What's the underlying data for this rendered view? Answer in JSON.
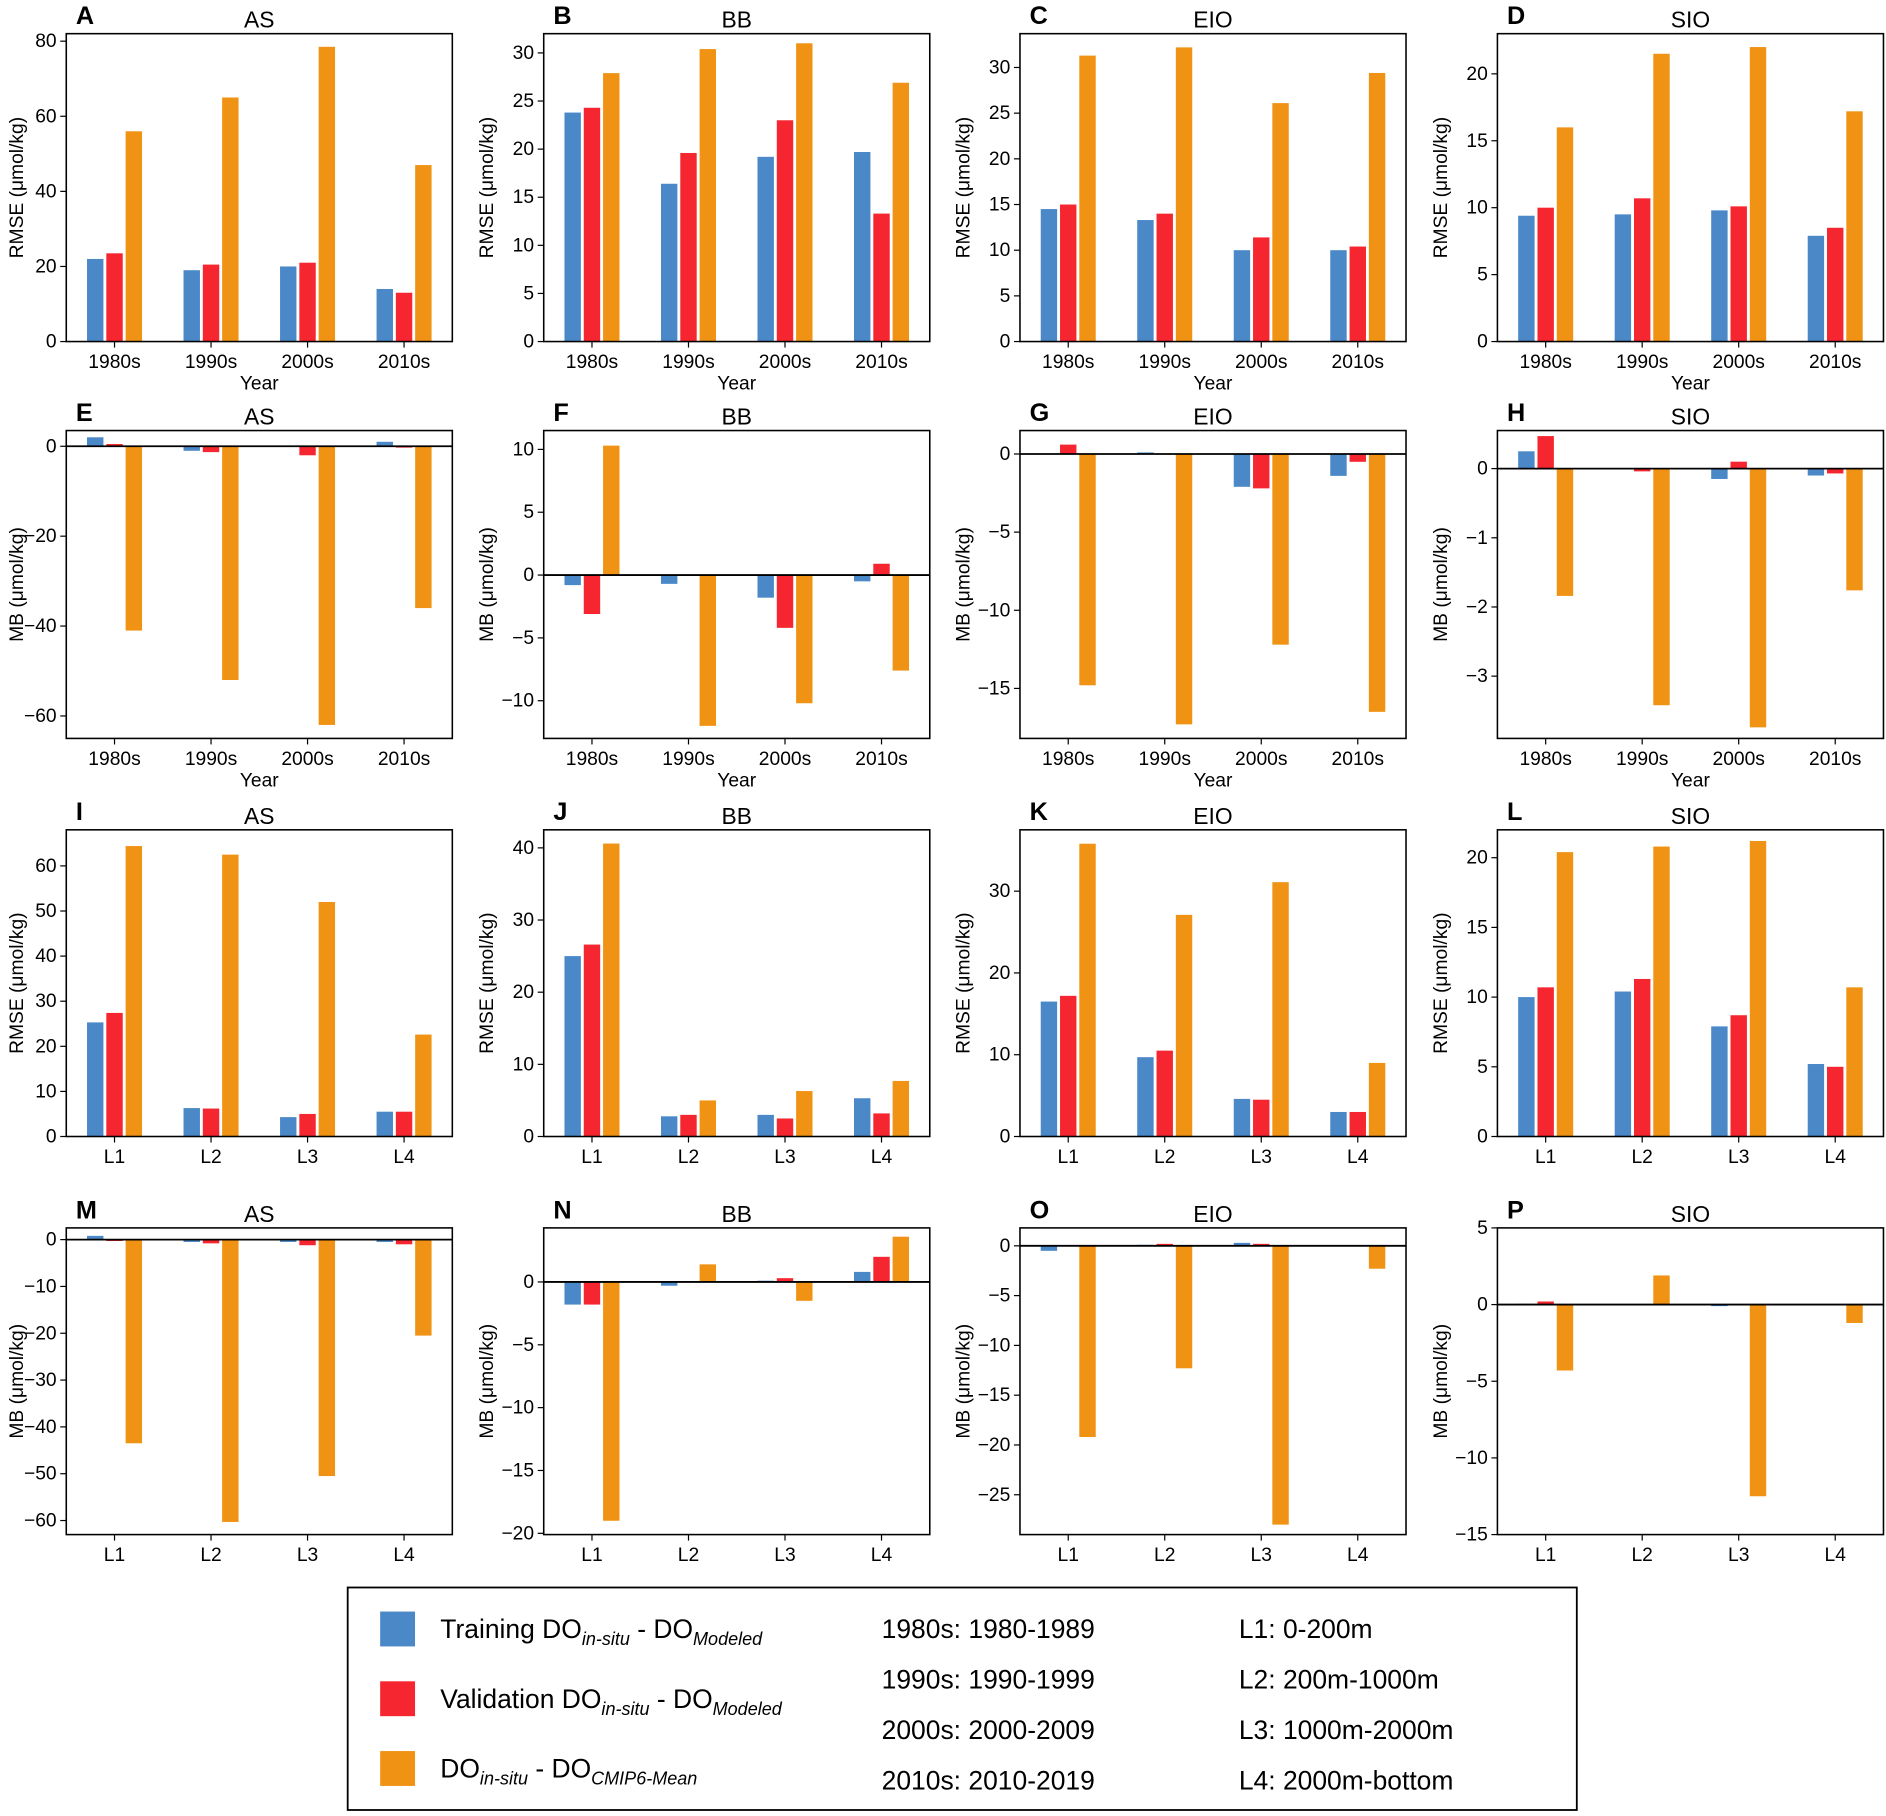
{
  "colors": {
    "training": "#4a88c8",
    "validation": "#f5262f",
    "cmip6": "#f09213"
  },
  "legend": {
    "items": [
      {
        "parts": [
          "Training DO",
          "in-situ",
          " - DO",
          "Modeled"
        ],
        "color_key": "training"
      },
      {
        "parts": [
          "Validation DO",
          "in-situ",
          " - DO",
          "Modeled"
        ],
        "color_key": "validation"
      },
      {
        "parts": [
          "DO",
          "in-situ",
          " - DO",
          "CMIP6-Mean"
        ],
        "color_key": "cmip6"
      }
    ],
    "periods": [
      "1980s: 1980-1989",
      "1990s: 1990-1999",
      "2000s: 2000-2009",
      "2010s: 2010-2019"
    ],
    "layers": [
      "L1: 0-200m",
      "L2: 200m-1000m",
      "L3: 1000m-2000m",
      "L4: 2000m-bottom"
    ]
  },
  "chart_data": [
    {
      "panel": "A",
      "title": "AS",
      "type": "bar",
      "categories": [
        "1980s",
        "1990s",
        "2000s",
        "2010s"
      ],
      "xlabel": "Year",
      "ylabel": "RMSE (μmol/kg)",
      "ylim": [
        0,
        82
      ],
      "yticks": [
        0,
        20,
        40,
        60,
        80
      ],
      "series": [
        [
          22,
          19,
          20,
          14
        ],
        [
          23.5,
          20.5,
          21,
          13
        ],
        [
          56,
          65,
          78.5,
          47
        ]
      ]
    },
    {
      "panel": "B",
      "title": "BB",
      "type": "bar",
      "categories": [
        "1980s",
        "1990s",
        "2000s",
        "2010s"
      ],
      "xlabel": "Year",
      "ylabel": "RMSE (μmol/kg)",
      "ylim": [
        0,
        32
      ],
      "yticks": [
        0,
        5,
        10,
        15,
        20,
        25,
        30
      ],
      "series": [
        [
          23.8,
          16.4,
          19.2,
          19.7
        ],
        [
          24.3,
          19.6,
          23,
          13.3
        ],
        [
          27.9,
          30.4,
          31,
          26.9
        ]
      ]
    },
    {
      "panel": "C",
      "title": "EIO",
      "type": "bar",
      "categories": [
        "1980s",
        "1990s",
        "2000s",
        "2010s"
      ],
      "xlabel": "Year",
      "ylabel": "RMSE (μmol/kg)",
      "ylim": [
        0,
        33.7
      ],
      "yticks": [
        0,
        5,
        10,
        15,
        20,
        25,
        30
      ],
      "series": [
        [
          14.5,
          13.3,
          10,
          10
        ],
        [
          15,
          14,
          11.4,
          10.4
        ],
        [
          31.3,
          32.2,
          26.1,
          29.4
        ]
      ]
    },
    {
      "panel": "D",
      "title": "SIO",
      "type": "bar",
      "categories": [
        "1980s",
        "1990s",
        "2000s",
        "2010s"
      ],
      "xlabel": "Year",
      "ylabel": "RMSE (μmol/kg)",
      "ylim": [
        0,
        23
      ],
      "yticks": [
        0,
        5,
        10,
        15,
        20
      ],
      "series": [
        [
          9.4,
          9.5,
          9.8,
          7.9
        ],
        [
          10,
          10.7,
          10.1,
          8.5
        ],
        [
          16,
          21.5,
          22,
          17.2
        ]
      ]
    },
    {
      "panel": "E",
      "title": "AS",
      "type": "bar",
      "categories": [
        "1980s",
        "1990s",
        "2000s",
        "2010s"
      ],
      "xlabel": "Year",
      "ylabel": "MB (μmol/kg)",
      "ylim": [
        -65,
        3.5
      ],
      "yticks": [
        -60,
        -40,
        -20,
        0
      ],
      "series": [
        [
          2,
          -1,
          0,
          1
        ],
        [
          0.5,
          -1.3,
          -2,
          -0.3
        ],
        [
          -41,
          -52,
          -62,
          -36
        ]
      ]
    },
    {
      "panel": "F",
      "title": "BB",
      "type": "bar",
      "categories": [
        "1980s",
        "1990s",
        "2000s",
        "2010s"
      ],
      "xlabel": "Year",
      "ylabel": "MB (μmol/kg)",
      "ylim": [
        -13,
        11.5
      ],
      "yticks": [
        -10,
        -5,
        0,
        5,
        10
      ],
      "series": [
        [
          -0.8,
          -0.7,
          -1.8,
          -0.5
        ],
        [
          -3.1,
          0,
          -4.2,
          0.9
        ],
        [
          10.3,
          -12,
          -10.2,
          -7.6
        ]
      ]
    },
    {
      "panel": "G",
      "title": "EIO",
      "type": "bar",
      "categories": [
        "1980s",
        "1990s",
        "2000s",
        "2010s"
      ],
      "xlabel": "Year",
      "ylabel": "MB (μmol/kg)",
      "ylim": [
        -18.2,
        1.5
      ],
      "yticks": [
        -15,
        -10,
        -5,
        0
      ],
      "series": [
        [
          0,
          0.1,
          -2.1,
          -1.4
        ],
        [
          0.6,
          0,
          -2.2,
          -0.5
        ],
        [
          -14.8,
          -17.3,
          -12.2,
          -16.5
        ]
      ]
    },
    {
      "panel": "H",
      "title": "SIO",
      "type": "bar",
      "categories": [
        "1980s",
        "1990s",
        "2000s",
        "2010s"
      ],
      "xlabel": "Year",
      "ylabel": "MB (μmol/kg)",
      "ylim": [
        -3.9,
        0.55
      ],
      "yticks": [
        -3,
        -2,
        -1,
        0
      ],
      "series": [
        [
          0.25,
          0,
          -0.15,
          -0.1
        ],
        [
          0.47,
          -0.04,
          0.1,
          -0.07
        ],
        [
          -1.84,
          -3.42,
          -3.74,
          -1.76
        ]
      ]
    },
    {
      "panel": "I",
      "title": "AS",
      "type": "bar",
      "categories": [
        "L1",
        "L2",
        "L3",
        "L4"
      ],
      "xlabel": "",
      "ylabel": "RMSE (μmol/kg)",
      "ylim": [
        0,
        68
      ],
      "yticks": [
        0,
        10,
        20,
        30,
        40,
        50,
        60
      ],
      "series": [
        [
          25.3,
          6.3,
          4.3,
          5.5
        ],
        [
          27.4,
          6.2,
          5,
          5.5
        ],
        [
          64.4,
          62.5,
          52,
          22.6
        ]
      ]
    },
    {
      "panel": "J",
      "title": "BB",
      "type": "bar",
      "categories": [
        "L1",
        "L2",
        "L3",
        "L4"
      ],
      "xlabel": "",
      "ylabel": "RMSE (μmol/kg)",
      "ylim": [
        0,
        42.5
      ],
      "yticks": [
        0,
        10,
        20,
        30,
        40
      ],
      "series": [
        [
          25,
          2.8,
          3,
          5.3
        ],
        [
          26.6,
          3,
          2.5,
          3.2
        ],
        [
          40.6,
          5,
          6.3,
          7.7
        ]
      ]
    },
    {
      "panel": "K",
      "title": "EIO",
      "type": "bar",
      "categories": [
        "L1",
        "L2",
        "L3",
        "L4"
      ],
      "xlabel": "",
      "ylabel": "RMSE (μmol/kg)",
      "ylim": [
        0,
        37.5
      ],
      "yticks": [
        0,
        10,
        20,
        30
      ],
      "series": [
        [
          16.5,
          9.7,
          4.6,
          3
        ],
        [
          17.2,
          10.5,
          4.5,
          3
        ],
        [
          35.8,
          27.1,
          31.1,
          9
        ]
      ]
    },
    {
      "panel": "L",
      "title": "SIO",
      "type": "bar",
      "categories": [
        "L1",
        "L2",
        "L3",
        "L4"
      ],
      "xlabel": "",
      "ylabel": "RMSE (μmol/kg)",
      "ylim": [
        0,
        22
      ],
      "yticks": [
        0,
        5,
        10,
        15,
        20
      ],
      "series": [
        [
          10,
          10.4,
          7.9,
          5.2
        ],
        [
          10.7,
          11.3,
          8.7,
          5
        ],
        [
          20.4,
          20.8,
          21.2,
          10.7
        ]
      ]
    },
    {
      "panel": "M",
      "title": "AS",
      "type": "bar",
      "categories": [
        "L1",
        "L2",
        "L3",
        "L4"
      ],
      "xlabel": "",
      "ylabel": "MB (μmol/kg)",
      "ylim": [
        -63,
        2.5
      ],
      "yticks": [
        -60,
        -50,
        -40,
        -30,
        -20,
        -10,
        0
      ],
      "series": [
        [
          0.8,
          -0.5,
          -0.5,
          -0.5
        ],
        [
          -0.3,
          -0.8,
          -1.2,
          -1
        ],
        [
          -43.5,
          -60.3,
          -50.5,
          -20.5
        ]
      ]
    },
    {
      "panel": "N",
      "title": "BB",
      "type": "bar",
      "categories": [
        "L1",
        "L2",
        "L3",
        "L4"
      ],
      "xlabel": "",
      "ylabel": "MB (μmol/kg)",
      "ylim": [
        -20.1,
        4.3
      ],
      "yticks": [
        -20,
        -15,
        -10,
        -5,
        0
      ],
      "series": [
        [
          -1.8,
          -0.3,
          0.1,
          0.8
        ],
        [
          -1.8,
          0,
          0.3,
          2
        ],
        [
          -19,
          1.4,
          -1.5,
          3.6
        ]
      ]
    },
    {
      "panel": "O",
      "title": "EIO",
      "type": "bar",
      "categories": [
        "L1",
        "L2",
        "L3",
        "L4"
      ],
      "xlabel": "",
      "ylabel": "MB (μmol/kg)",
      "ylim": [
        -29,
        1.8
      ],
      "yticks": [
        -25,
        -20,
        -15,
        -10,
        -5,
        0
      ],
      "series": [
        [
          -0.5,
          0.1,
          0.3,
          0.05
        ],
        [
          0,
          0.2,
          0.2,
          0.05
        ],
        [
          -19.2,
          -12.3,
          -28,
          -2.3
        ]
      ]
    },
    {
      "panel": "P",
      "title": "SIO",
      "type": "bar",
      "categories": [
        "L1",
        "L2",
        "L3",
        "L4"
      ],
      "xlabel": "",
      "ylabel": "MB (μmol/kg)",
      "ylim": [
        -15,
        5
      ],
      "yticks": [
        -15,
        -10,
        -5,
        0,
        5
      ],
      "series": [
        [
          0.05,
          -0.05,
          -0.1,
          0
        ],
        [
          0.2,
          0,
          0,
          0
        ],
        [
          -4.3,
          1.9,
          -12.5,
          -1.2
        ]
      ]
    }
  ]
}
